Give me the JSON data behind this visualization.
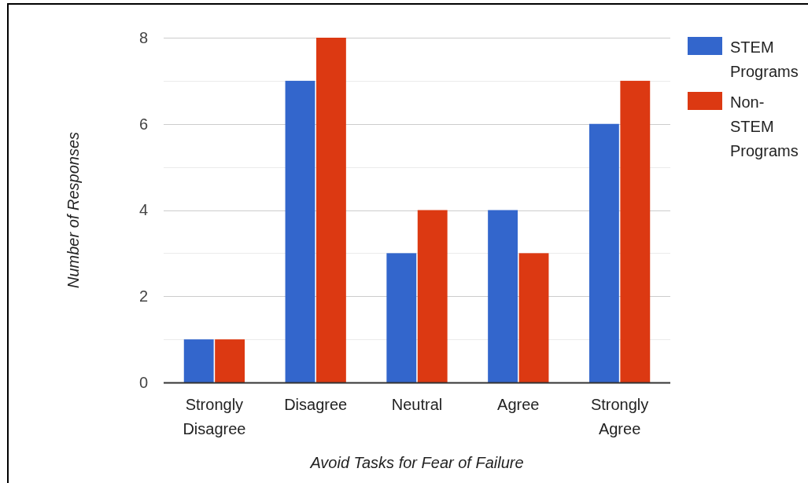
{
  "chart_data": {
    "type": "bar",
    "xlabel": "Avoid Tasks for Fear of Failure",
    "ylabel": "Number of Responses",
    "categories": [
      "Strongly Disagree",
      "Disagree",
      "Neutral",
      "Agree",
      "Strongly Agree"
    ],
    "series": [
      {
        "name": "STEM Programs",
        "color": "#3366cc",
        "values": [
          1,
          7,
          3,
          4,
          6
        ]
      },
      {
        "name": "Non-STEM Programs",
        "color": "#dc3912",
        "values": [
          1,
          8,
          4,
          3,
          7
        ]
      }
    ],
    "ylim": [
      0,
      8
    ],
    "yticks": [
      0,
      {
        "value": 1,
        "label": null
      },
      2,
      {
        "value": 3,
        "label": null
      },
      4,
      {
        "value": 5,
        "label": null
      },
      6,
      {
        "value": 7,
        "label": null
      },
      8
    ],
    "grid": true,
    "legend": "top right"
  }
}
